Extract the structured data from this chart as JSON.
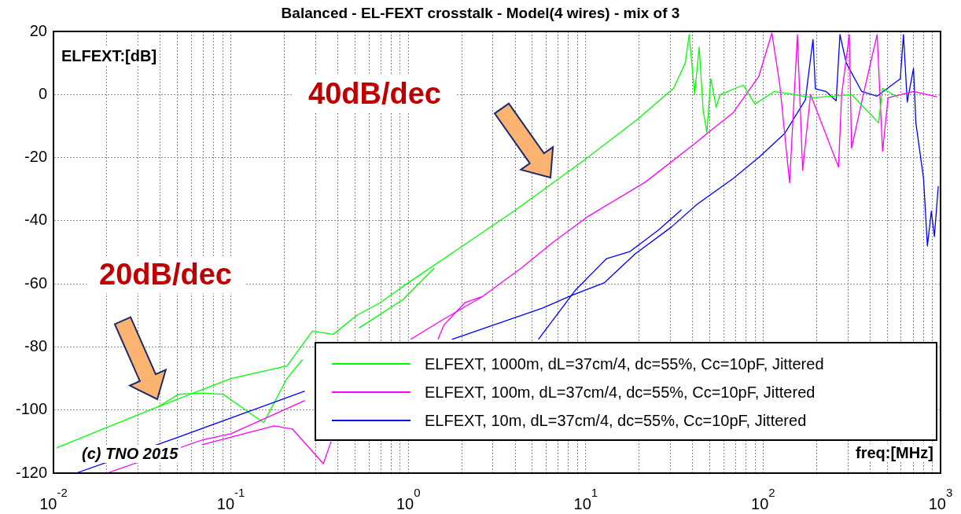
{
  "chart_data": {
    "type": "line",
    "title": "Balanced - EL-FEXT crosstalk - Model(4 wires) - mix of 3",
    "xlabel": "freq:[MHz]",
    "ylabel": "ELFEXT:[dB]",
    "annotations": [
      "40dB/dec",
      "20dB/dec",
      "(c) TNO 2015"
    ],
    "log": "x",
    "grid": true,
    "legend": "bottom right",
    "line_style": "solid",
    "xlim": [
      0.01,
      1000
    ],
    "ylim": [
      -120,
      20
    ],
    "xticks": [
      {
        "value": 0.01,
        "label": "10$^{-2}$"
      },
      {
        "value": 0.02,
        "label": null
      },
      {
        "value": 0.03,
        "label": null
      },
      {
        "value": 0.04,
        "label": null
      },
      {
        "value": 0.05,
        "label": null
      },
      {
        "value": 0.06,
        "label": null
      },
      {
        "value": 0.07,
        "label": null
      },
      {
        "value": 0.08,
        "label": null
      },
      {
        "value": 0.09,
        "label": null
      },
      {
        "value": 0.1,
        "label": "10$^{-1}$"
      },
      {
        "value": 0.2,
        "label": null
      },
      {
        "value": 0.3,
        "label": null
      },
      {
        "value": 0.4,
        "label": null
      },
      {
        "value": 0.5,
        "label": null
      },
      {
        "value": 0.6,
        "label": null
      },
      {
        "value": 0.7,
        "label": null
      },
      {
        "value": 0.8,
        "label": null
      },
      {
        "value": 0.9,
        "label": null
      },
      {
        "value": 1,
        "label": "10$^{0}$"
      },
      {
        "value": 2,
        "label": null
      },
      {
        "value": 3,
        "label": null
      },
      {
        "value": 4,
        "label": null
      },
      {
        "value": 5,
        "label": null
      },
      {
        "value": 6,
        "label": null
      },
      {
        "value": 7,
        "label": null
      },
      {
        "value": 8,
        "label": null
      },
      {
        "value": 9,
        "label": null
      },
      {
        "value": 10,
        "label": "10$^{1}$"
      },
      {
        "value": 20,
        "label": null
      },
      {
        "value": 30,
        "label": null
      },
      {
        "value": 40,
        "label": null
      },
      {
        "value": 50,
        "label": null
      },
      {
        "value": 60,
        "label": null
      },
      {
        "value": 70,
        "label": null
      },
      {
        "value": 80,
        "label": null
      },
      {
        "value": 90,
        "label": null
      },
      {
        "value": 100,
        "label": "10$^{2}$"
      },
      {
        "value": 200,
        "label": null
      },
      {
        "value": 300,
        "label": null
      },
      {
        "value": 400,
        "label": null
      },
      {
        "value": 500,
        "label": null
      },
      {
        "value": 600,
        "label": null
      },
      {
        "value": 700,
        "label": null
      },
      {
        "value": 800,
        "label": null
      },
      {
        "value": 900,
        "label": null
      },
      {
        "value": 1000,
        "label": "10$^{3}$"
      }
    ],
    "yticks": [
      -120,
      -100,
      -80,
      -60,
      -40,
      -20,
      0,
      20
    ],
    "series": [
      {
        "name": "ELFEXT, 1000m, dL=37cm/4, dc=55%, Cc=10pF, Jittered",
        "color": "#00ff00",
        "x": [
          0.0104,
          0.0387,
          0.1,
          0.207,
          0.288,
          0.378,
          0.512,
          0.692,
          0.98,
          2.02,
          3.93,
          6.17,
          9.9,
          19.4,
          31.3,
          36.4,
          38.3,
          41.1,
          43.6,
          45.9,
          48.2,
          50.7,
          54.4,
          57.3,
          77.3,
          89.9,
          116,
          191,
          315,
          448,
          471,
          576
        ],
        "values": [
          -112,
          -99,
          -90,
          -86,
          -75,
          -76,
          -70,
          -66,
          -60,
          -48,
          -37,
          -29,
          -20.6,
          -8,
          2,
          10,
          19,
          0,
          15,
          -5,
          -12,
          5,
          -4,
          0,
          3,
          -3,
          1,
          -1,
          0,
          -9,
          2,
          -1
        ]
      },
      {
        "name": "ELFEXT, 100m, dL=37cm/4, dc=55%, Cc=10pF, Jittered",
        "color": "#ff00ff",
        "x": [
          0.02,
          0.0687,
          0.1,
          0.261,
          0.5,
          1.03,
          1.5,
          2.62,
          4.34,
          6.48,
          10.4,
          21.6,
          42.4,
          48.2,
          67.9,
          94.6,
          112,
          124,
          141,
          156,
          167,
          178,
          185,
          266,
          277,
          306,
          315,
          367,
          439,
          471,
          506,
          704,
          951
        ],
        "values": [
          -120,
          -109.5,
          -107.5,
          -97,
          null,
          -77.6,
          -72,
          -64,
          -55,
          -47,
          -38.5,
          -27.8,
          -15,
          -12.4,
          -5.7,
          5.8,
          19.5,
          3.3,
          -28,
          19,
          -24,
          -9,
          0,
          -23,
          0,
          19,
          -17,
          0,
          19,
          -18,
          -1,
          1,
          -0.7
        ]
      },
      {
        "name": "ELFEXT, 10m, dL=37cm/4, dc=55%, Cc=10pF, Jittered",
        "color": "#0000ff",
        "x": [
          0.0134,
          0.0493,
          0.261,
          0.6,
          1.76,
          5.69,
          8.49,
          12.7,
          19,
          30.4,
          42.4,
          67.9,
          94.6,
          132,
          173,
          191,
          197,
          226,
          258,
          271,
          294,
          359,
          439,
          593,
          618,
          649,
          704,
          726,
          802,
          843,
          887,
          923,
          971
        ],
        "values": [
          -120,
          -108.8,
          -94,
          null,
          -77.6,
          -67.7,
          -63.5,
          -59.7,
          -50.5,
          -42,
          -34.8,
          -26.6,
          -19.9,
          -12.4,
          -1.7,
          17.5,
          1.8,
          1,
          -2,
          19,
          10,
          1,
          -0.5,
          5,
          19,
          -2.4,
          8.3,
          -9,
          -26.6,
          -48,
          -37,
          -45,
          -29
        ]
      },
      {
        "color": "#00ff00",
        "x": [
          0.0387,
          0.0508,
          0.0687,
          0.0901,
          0.153,
          0.207,
          0.253,
          0.31,
          0.527,
          0.933,
          1.4
        ],
        "values": [
          -99,
          -95,
          -94.6,
          -95,
          -104,
          -90,
          -84,
          null,
          -74,
          -65,
          -55
        ]
      },
      {
        "color": "#ff00ff",
        "x": [
          0.0687,
          0.175,
          0.222,
          0.332,
          0.367,
          0.7,
          1.47,
          1.59,
          2.08,
          2.62
        ],
        "values": [
          -111,
          -105,
          -106,
          -117,
          -110,
          null,
          -77.6,
          -73,
          -66,
          -64
        ]
      },
      {
        "color": "#0000ff",
        "x": [
          5.41,
          8.75,
          13.1,
          17.7,
          25.6,
          34.7
        ],
        "values": [
          -77.6,
          -62,
          -52,
          -49.8,
          -43,
          -36.5
        ]
      }
    ]
  }
}
